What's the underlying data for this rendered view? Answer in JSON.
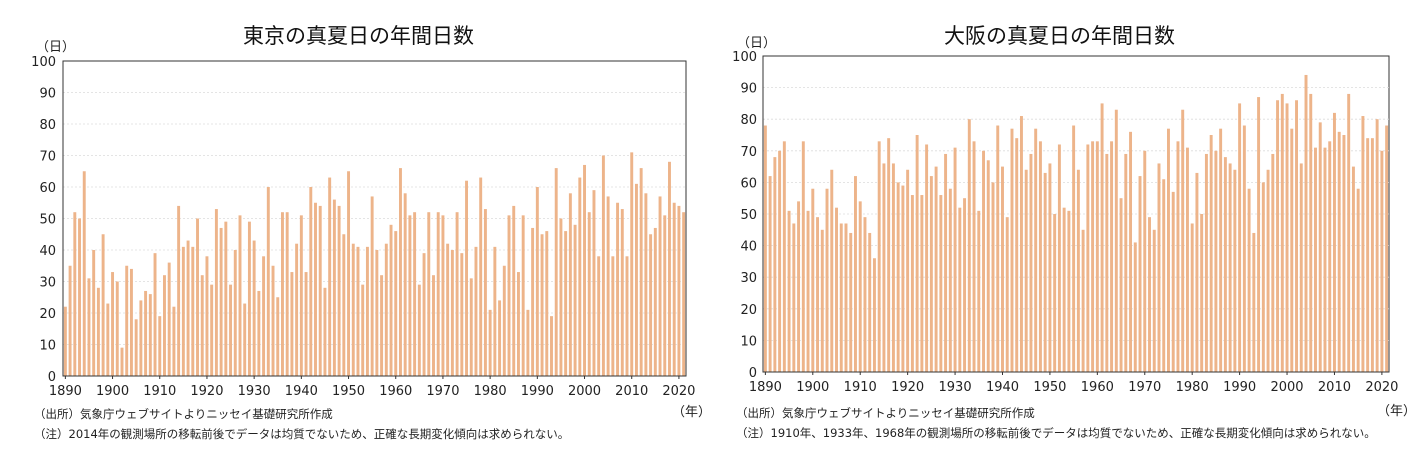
{
  "chart_data": [
    {
      "type": "bar",
      "title": "東京の真夏日の年間日数",
      "ylabel": "（日）",
      "xlabel": "（年）",
      "ylim": [
        0,
        100
      ],
      "yticks": [
        0,
        10,
        20,
        30,
        40,
        50,
        60,
        70,
        80,
        90,
        100
      ],
      "xticks": [
        1890,
        1900,
        1910,
        1920,
        1930,
        1940,
        1950,
        1960,
        1970,
        1980,
        1990,
        2000,
        2010,
        2020
      ],
      "grid": true,
      "bar_color": "#EDB48A",
      "x_start": 1890,
      "x_end": 2021,
      "values": [
        22,
        35,
        52,
        50,
        65,
        31,
        40,
        28,
        45,
        23,
        33,
        30,
        9,
        35,
        34,
        18,
        24,
        27,
        26,
        39,
        19,
        32,
        36,
        22,
        54,
        41,
        43,
        41,
        50,
        32,
        38,
        29,
        53,
        47,
        49,
        29,
        40,
        51,
        23,
        49,
        43,
        27,
        38,
        60,
        35,
        25,
        52,
        52,
        33,
        42,
        51,
        33,
        60,
        55,
        54,
        28,
        63,
        56,
        54,
        45,
        65,
        42,
        41,
        29,
        41,
        57,
        40,
        32,
        42,
        48,
        46,
        66,
        58,
        51,
        52,
        29,
        39,
        52,
        32,
        52,
        51,
        42,
        40,
        52,
        39,
        62,
        31,
        41,
        63,
        53,
        21,
        41,
        24,
        35,
        51,
        54,
        33,
        51,
        21,
        47,
        60,
        45,
        46,
        19,
        66,
        50,
        46,
        58,
        48,
        63,
        67,
        52,
        59,
        38,
        70,
        57,
        38,
        55,
        53,
        38,
        71,
        61,
        66,
        58,
        45,
        47,
        57,
        51,
        68,
        55,
        54,
        52
      ],
      "source": "（出所）気象庁ウェブサイトよりニッセイ基礎研究所作成",
      "note": "（注）2014年の観測場所の移転前後でデータは均質でないため、正確な長期変化傾向は求められない。"
    },
    {
      "type": "bar",
      "title": "大阪の真夏日の年間日数",
      "ylabel": "（日）",
      "xlabel": "（年）",
      "ylim": [
        0,
        100
      ],
      "yticks": [
        0,
        10,
        20,
        30,
        40,
        50,
        60,
        70,
        80,
        90,
        100
      ],
      "xticks": [
        1890,
        1900,
        1910,
        1920,
        1930,
        1940,
        1950,
        1960,
        1970,
        1980,
        1990,
        2000,
        2010,
        2020
      ],
      "grid": true,
      "bar_color": "#EDB48A",
      "x_start": 1890,
      "x_end": 2021,
      "values": [
        78,
        62,
        68,
        70,
        73,
        51,
        47,
        54,
        73,
        51,
        58,
        49,
        45,
        58,
        64,
        52,
        47,
        47,
        44,
        62,
        54,
        49,
        44,
        36,
        73,
        66,
        74,
        66,
        60,
        59,
        64,
        56,
        75,
        56,
        72,
        62,
        65,
        56,
        69,
        58,
        71,
        52,
        55,
        80,
        73,
        51,
        70,
        67,
        60,
        78,
        65,
        49,
        77,
        74,
        81,
        64,
        69,
        77,
        73,
        63,
        66,
        50,
        72,
        52,
        51,
        78,
        64,
        45,
        72,
        73,
        73,
        85,
        69,
        73,
        83,
        55,
        69,
        76,
        41,
        62,
        70,
        49,
        45,
        66,
        61,
        77,
        57,
        73,
        83,
        71,
        47,
        63,
        50,
        69,
        75,
        70,
        77,
        68,
        66,
        64,
        85,
        78,
        58,
        44,
        87,
        60,
        64,
        69,
        86,
        88,
        85,
        77,
        86,
        66,
        94,
        88,
        71,
        79,
        71,
        73,
        82,
        76,
        75,
        88,
        65,
        58,
        81,
        74,
        74,
        80,
        70,
        78
      ],
      "source": "（出所）気象庁ウェブサイトよりニッセイ基礎研究所作成",
      "note": "（注）1910年、1933年、1968年の観測場所の移転前後でデータは均質でないため、正確な長期変化傾向は求められない。"
    }
  ]
}
